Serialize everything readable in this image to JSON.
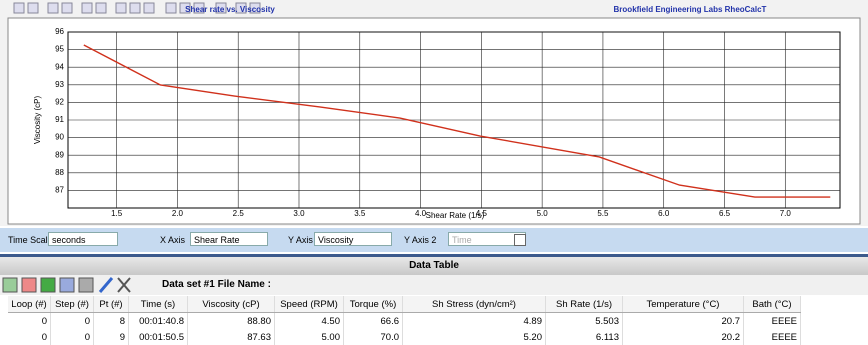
{
  "chart_data": {
    "type": "line",
    "title": "Shear rate vs. Viscosity",
    "subtitle": "Brookfield Engineering Labs RheoCalcT",
    "x_label": "Shear Rate (1/s)",
    "y_label": "Viscosity (cP)",
    "x": [
      1.23,
      1.86,
      2.47,
      3.17,
      3.83,
      4.49,
      5.47,
      6.13,
      6.75,
      7.37
    ],
    "series": [
      {
        "color": "#d0311c",
        "values": [
          95.26,
          92.99,
          92.36,
          91.74,
          91.11,
          90.09,
          88.9,
          87.3,
          86.62,
          86.62
        ]
      }
    ],
    "xlim": [
      1.1,
      7.45
    ],
    "ylim": [
      86,
      96
    ],
    "xticks": [
      1.5,
      {
        "value": 2,
        "label": "2.0"
      },
      2.5,
      {
        "value": 3,
        "label": "3.0"
      },
      3.5,
      {
        "value": 4,
        "label": "4.0"
      },
      4.5,
      {
        "value": 5,
        "label": "5.0"
      },
      5.5,
      {
        "value": 6,
        "label": "6.0"
      },
      6.5,
      {
        "value": 7,
        "label": "7.0"
      }
    ],
    "yticks": [
      87,
      88,
      89,
      90,
      91,
      92,
      93,
      94,
      95,
      96
    ],
    "grid": true
  },
  "controls": [
    {
      "label": "Time Scale",
      "value": "seconds"
    },
    {
      "label": "X Axis",
      "value": "Shear Rate"
    },
    {
      "label": "Y Axis",
      "value": "Viscosity"
    },
    {
      "label": "Y Axis 2",
      "value": "Time"
    }
  ],
  "data_table": {
    "title": "Data Table",
    "file_label": "Data set #1 File Name :",
    "columns": [
      "Loop (#)",
      "Step (#)",
      "Pt (#)",
      "Time (s)",
      "Viscosity (cP)",
      "Speed (RPM)",
      "Torque (%)",
      "Sh Stress (dyn/cm²)",
      "Sh Rate (1/s)",
      "Temperature (°C)",
      "Bath (°C)"
    ],
    "rows": [
      [
        "0",
        "0",
        "8",
        "00:01:40.8",
        "88.80",
        "4.50",
        "66.6",
        "4.89",
        "5.503",
        "20.7",
        "EEEE"
      ],
      [
        "0",
        "0",
        "9",
        "00:01:50.5",
        "87.63",
        "5.00",
        "70.0",
        "5.20",
        "6.113",
        "20.2",
        "EEEE"
      ]
    ]
  }
}
